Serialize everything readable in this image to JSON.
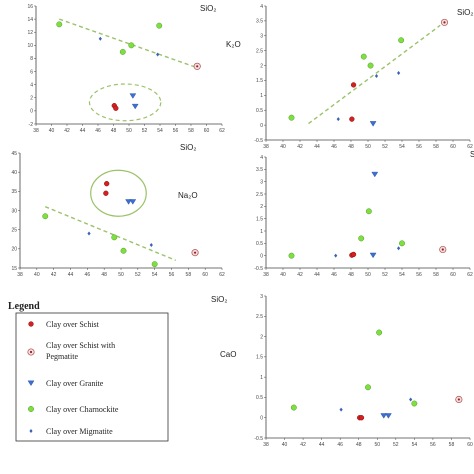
{
  "chart_data": [
    {
      "type": "scatter",
      "xlim": [
        38,
        62
      ],
      "ylim": [
        -2,
        16
      ],
      "x_ticks": [
        "38",
        "40",
        "42",
        "44",
        "46",
        "48",
        "50",
        "52",
        "54",
        "56",
        "58",
        "60",
        "62"
      ],
      "y_ticks": [
        "-2",
        "0",
        "2",
        "4",
        "6",
        "8",
        "10",
        "12",
        "14",
        "16"
      ],
      "corner_label": "SiO₂",
      "ylabel": "",
      "grid": false,
      "points": [
        {
          "x": 41.0,
          "y": 13.2,
          "marker": "charnockite"
        },
        {
          "x": 49.2,
          "y": 9.0,
          "marker": "charnockite"
        },
        {
          "x": 50.3,
          "y": 10.0,
          "marker": "charnockite"
        },
        {
          "x": 53.9,
          "y": 13.0,
          "marker": "charnockite"
        },
        {
          "x": 46.3,
          "y": 11.0,
          "marker": "migmatite"
        },
        {
          "x": 53.7,
          "y": 8.6,
          "marker": "migmatite"
        },
        {
          "x": 58.8,
          "y": 6.8,
          "marker": "pegmatite"
        },
        {
          "x": 48.1,
          "y": 0.8,
          "marker": "schist"
        },
        {
          "x": 48.3,
          "y": 0.4,
          "marker": "schist"
        },
        {
          "x": 50.5,
          "y": 2.3,
          "marker": "granite"
        },
        {
          "x": 50.8,
          "y": 0.7,
          "marker": "granite"
        }
      ],
      "trend": [
        [
          41.0,
          14.0
        ],
        [
          59.0,
          6.5
        ]
      ],
      "ellipse": {
        "cx": 49.5,
        "cy": 1.3,
        "rx": 4.6,
        "ry": 2.8,
        "dashed": true
      }
    },
    {
      "type": "scatter",
      "xlim": [
        38,
        62
      ],
      "ylim": [
        -0.5,
        4
      ],
      "x_ticks": [
        "38",
        "40",
        "42",
        "44",
        "46",
        "48",
        "50",
        "52",
        "54",
        "56",
        "58",
        "60",
        "62"
      ],
      "y_ticks": [
        "-0.5",
        "0",
        "0.5",
        "1",
        "1.5",
        "2",
        "2.5",
        "3",
        "3.5",
        "4"
      ],
      "corner_label": "SiO₂",
      "ylabel": "K₂O",
      "grid": false,
      "points": [
        {
          "x": 41.0,
          "y": 0.25,
          "marker": "charnockite"
        },
        {
          "x": 49.5,
          "y": 2.3,
          "marker": "charnockite"
        },
        {
          "x": 50.3,
          "y": 2.0,
          "marker": "charnockite"
        },
        {
          "x": 53.9,
          "y": 2.85,
          "marker": "charnockite"
        },
        {
          "x": 46.5,
          "y": 0.2,
          "marker": "migmatite"
        },
        {
          "x": 51.0,
          "y": 1.65,
          "marker": "migmatite"
        },
        {
          "x": 53.6,
          "y": 1.75,
          "marker": "migmatite"
        },
        {
          "x": 48.3,
          "y": 1.35,
          "marker": "schist"
        },
        {
          "x": 48.1,
          "y": 0.2,
          "marker": "schist"
        },
        {
          "x": 50.6,
          "y": 0.05,
          "marker": "granite"
        },
        {
          "x": 59.0,
          "y": 3.45,
          "marker": "pegmatite"
        }
      ],
      "trend": [
        [
          43.0,
          0.05
        ],
        [
          58.5,
          3.35
        ]
      ]
    },
    {
      "type": "scatter",
      "xlim": [
        38,
        62
      ],
      "ylim": [
        15,
        45
      ],
      "x_ticks": [
        "38",
        "40",
        "42",
        "44",
        "46",
        "48",
        "50",
        "52",
        "54",
        "56",
        "58",
        "60",
        "62"
      ],
      "y_ticks": [
        "15",
        "20",
        "25",
        "30",
        "35",
        "40",
        "45"
      ],
      "corner_label": "SiO₂",
      "ylabel": "Na₂O",
      "grid": false,
      "points": [
        {
          "x": 41.0,
          "y": 28.5,
          "marker": "charnockite"
        },
        {
          "x": 49.2,
          "y": 23.0,
          "marker": "charnockite"
        },
        {
          "x": 50.3,
          "y": 19.5,
          "marker": "charnockite"
        },
        {
          "x": 54.0,
          "y": 16.0,
          "marker": "charnockite"
        },
        {
          "x": 46.2,
          "y": 24.0,
          "marker": "migmatite"
        },
        {
          "x": 53.6,
          "y": 21.0,
          "marker": "migmatite"
        },
        {
          "x": 48.3,
          "y": 37.0,
          "marker": "schist"
        },
        {
          "x": 48.2,
          "y": 34.5,
          "marker": "schist"
        },
        {
          "x": 50.9,
          "y": 32.3,
          "marker": "granite"
        },
        {
          "x": 51.4,
          "y": 32.3,
          "marker": "granite"
        },
        {
          "x": 58.8,
          "y": 19.0,
          "marker": "pegmatite"
        }
      ],
      "trend": [
        [
          41.0,
          31.0
        ],
        [
          56.5,
          17.0
        ]
      ],
      "ellipse": {
        "cx": 49.7,
        "cy": 34.5,
        "rx": 3.3,
        "ry": 6.0,
        "dashed": false
      }
    },
    {
      "type": "scatter",
      "xlim": [
        38,
        62
      ],
      "ylim": [
        -0.5,
        4
      ],
      "x_ticks": [
        "38",
        "40",
        "42",
        "44",
        "46",
        "48",
        "50",
        "52",
        "54",
        "56",
        "58",
        "60",
        "62"
      ],
      "y_ticks": [
        "-0.5",
        "0",
        "0.5",
        "1",
        "1.5",
        "2",
        "2.5",
        "3",
        "3.5",
        "4"
      ],
      "corner_label": "S",
      "ylabel": "",
      "grid": false,
      "points": [
        {
          "x": 41.0,
          "y": 0.0,
          "marker": "charnockite"
        },
        {
          "x": 49.2,
          "y": 0.7,
          "marker": "charnockite"
        },
        {
          "x": 50.1,
          "y": 1.8,
          "marker": "charnockite"
        },
        {
          "x": 54.0,
          "y": 0.5,
          "marker": "charnockite"
        },
        {
          "x": 46.2,
          "y": 0.0,
          "marker": "migmatite"
        },
        {
          "x": 53.6,
          "y": 0.3,
          "marker": "migmatite"
        },
        {
          "x": 48.1,
          "y": 0.02,
          "marker": "schist"
        },
        {
          "x": 48.3,
          "y": 0.05,
          "marker": "schist"
        },
        {
          "x": 50.8,
          "y": 3.3,
          "marker": "granite"
        },
        {
          "x": 50.6,
          "y": 0.02,
          "marker": "granite"
        },
        {
          "x": 58.8,
          "y": 0.25,
          "marker": "pegmatite"
        }
      ]
    },
    {
      "type": "scatter",
      "xlim": [
        38,
        60
      ],
      "ylim": [
        -0.5,
        3
      ],
      "x_ticks": [
        "38",
        "40",
        "42",
        "44",
        "46",
        "48",
        "50",
        "52",
        "54",
        "56",
        "58",
        "60"
      ],
      "y_ticks": [
        "-0.5",
        "0",
        "0.5",
        "1",
        "1.5",
        "2",
        "2.5",
        "3"
      ],
      "corner_label": "SiO₂",
      "ylabel": "CaO",
      "grid": false,
      "points": [
        {
          "x": 41.0,
          "y": 0.25,
          "marker": "charnockite"
        },
        {
          "x": 49.0,
          "y": 0.75,
          "marker": "charnockite"
        },
        {
          "x": 50.2,
          "y": 2.1,
          "marker": "charnockite"
        },
        {
          "x": 54.0,
          "y": 0.35,
          "marker": "charnockite"
        },
        {
          "x": 46.1,
          "y": 0.2,
          "marker": "migmatite"
        },
        {
          "x": 53.6,
          "y": 0.45,
          "marker": "migmatite"
        },
        {
          "x": 48.1,
          "y": 0.0,
          "marker": "schist"
        },
        {
          "x": 48.3,
          "y": 0.0,
          "marker": "schist"
        },
        {
          "x": 50.7,
          "y": 0.05,
          "marker": "granite"
        },
        {
          "x": 51.2,
          "y": 0.05,
          "marker": "granite"
        },
        {
          "x": 58.8,
          "y": 0.45,
          "marker": "pegmatite"
        }
      ]
    }
  ],
  "legend": {
    "title": "Legend",
    "items": [
      {
        "label": "Clay over Schist",
        "marker": "schist"
      },
      {
        "label": "Clay over Schist with",
        "label2": "Pegmatite",
        "marker": "pegmatite"
      },
      {
        "label": "Clay over Granite",
        "marker": "granite"
      },
      {
        "label": "Clay over Charnockite",
        "marker": "charnockite"
      },
      {
        "label": "Clay over Migmatite",
        "marker": "migmatite"
      }
    ]
  },
  "colors": {
    "schist": "#d42020",
    "charnockite": "#7ee040",
    "charnockite_stroke": "#4e9a1e",
    "granite": "#3b6fd8",
    "migmatite": "#3a62b8",
    "pegmatite_fill": "#f3dede",
    "pegmatite_stroke": "#b05050",
    "trend": "#9bc26a",
    "ellipse": "#9bc26a",
    "axis": "#444444"
  }
}
